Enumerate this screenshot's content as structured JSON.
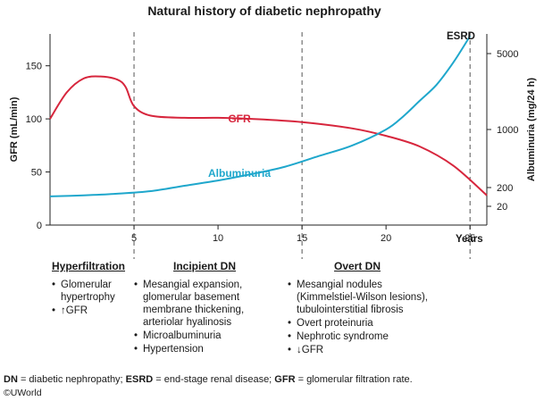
{
  "chart_data": {
    "type": "line",
    "title": "Natural history of diabetic nephropathy",
    "xlabel": "Years",
    "ylabel_left": "GFR (mL/min)",
    "ylabel_right": "Albuminuria (mg/24 h)",
    "xlim": [
      0,
      26
    ],
    "ylim_left": [
      0,
      180
    ],
    "x_ticks": [
      "5",
      "10",
      "15",
      "20",
      "25"
    ],
    "y_ticks_left": [
      "0",
      "50",
      "100",
      "150"
    ],
    "y_ticks_right": [
      "20",
      "200",
      "1000",
      "5000"
    ],
    "esrd_label": "ESRD",
    "series": [
      {
        "name": "GFR",
        "color": "#d7263d",
        "x": [
          0,
          1,
          2,
          3,
          4,
          4.5,
          5,
          6,
          8,
          10,
          12,
          15,
          18,
          20,
          22,
          24,
          26
        ],
        "y": [
          100,
          125,
          138,
          140,
          137,
          130,
          112,
          103,
          101,
          101,
          100,
          97,
          91,
          84,
          74,
          56,
          28
        ]
      },
      {
        "name": "Albuminuria",
        "color": "#1fa7cc",
        "x": [
          0,
          2,
          4,
          6,
          8,
          10,
          12,
          14,
          16,
          18,
          20,
          21,
          22,
          23,
          24,
          25
        ],
        "y": [
          27,
          28,
          29.5,
          32,
          37,
          42,
          48,
          55,
          65,
          75,
          90,
          102,
          117,
          132,
          153,
          178
        ]
      }
    ]
  },
  "stages": [
    {
      "title": "Hyperfiltration",
      "items": [
        "Glomerular hypertrophy",
        "↑GFR"
      ]
    },
    {
      "title": "Incipient DN",
      "items": [
        "Mesangial expansion, glomerular basement membrane thickening, arteriolar hyalinosis",
        "Microalbuminuria",
        "Hypertension"
      ]
    },
    {
      "title": "Overt DN",
      "items": [
        "Mesangial nodules (Kimmelstiel-Wilson lesions), tubulointerstitial fibrosis",
        "Overt proteinuria",
        "Nephrotic syndrome",
        "↓GFR"
      ]
    }
  ],
  "footnote": {
    "dn_abbr": "DN",
    "dn_text": " = diabetic nephropathy; ",
    "esrd_abbr": "ESRD",
    "esrd_text": " = end-stage renal disease; ",
    "gfr_abbr": "GFR",
    "gfr_text": " = glomerular filtration rate."
  },
  "copyright": "©UWorld"
}
